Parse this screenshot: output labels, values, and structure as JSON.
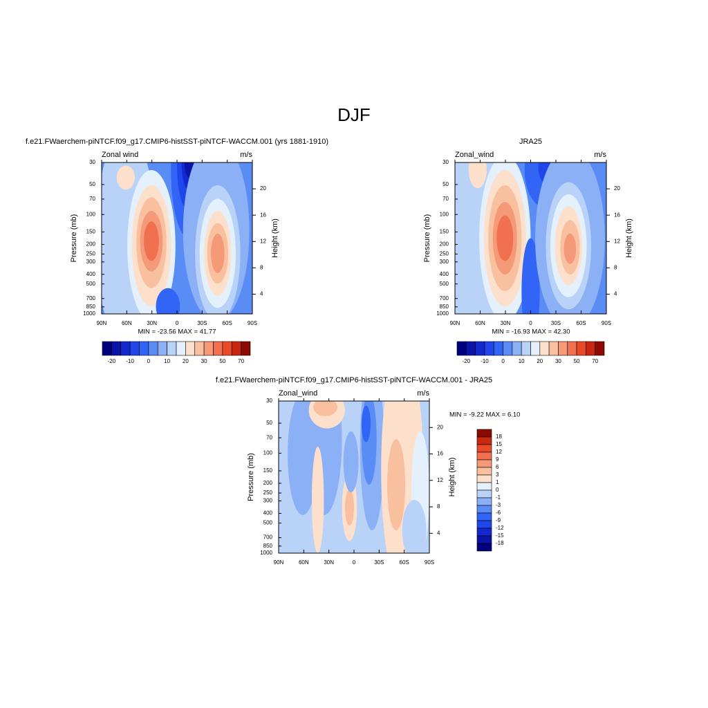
{
  "title": "DJF",
  "chart_data": [
    {
      "type": "contour",
      "title": "f.e21.FWaerchem-piNTCF.f09_g17.CMIP6-histSST-piNTCF-WACCM.001 (yrs 1881-1910)",
      "left_label": "Zonal wind",
      "right_label": "m/s",
      "ylabel": "Pressure (mb)",
      "y2label": "Height (km)",
      "stats": "MIN = -23.56  MAX =  41.77",
      "xlim": [
        90,
        -90
      ],
      "xticks": [
        {
          "value": 90,
          "label": "90N"
        },
        {
          "value": 60,
          "label": "60N"
        },
        {
          "value": 30,
          "label": "30N"
        },
        0,
        {
          "value": -30,
          "label": "30S"
        },
        {
          "value": -60,
          "label": "60S"
        },
        {
          "value": -90,
          "label": "90S"
        }
      ],
      "ylim": [
        1000,
        30
      ],
      "yscale": "log",
      "yticks": [
        30,
        50,
        70,
        100,
        150,
        200,
        250,
        300,
        400,
        500,
        700,
        850,
        1000
      ],
      "y2lim": [
        1,
        24
      ],
      "y2ticks": [
        4,
        8,
        12,
        16,
        20
      ],
      "colorbar": {
        "orientation": "horizontal",
        "colors": [
          "#00007f",
          "#0a14a8",
          "#1428d0",
          "#1e46eb",
          "#3264f5",
          "#5a8cf5",
          "#8cb0f5",
          "#b8d2f8",
          "#e4f0fc",
          "#fde0cc",
          "#f9c0a0",
          "#f49a78",
          "#f07050",
          "#ea4a28",
          "#c82810",
          "#8c0a00"
        ],
        "labels": [
          -20,
          -10,
          0,
          10,
          20,
          30,
          50,
          70
        ]
      }
    },
    {
      "type": "contour",
      "title": "JRA25",
      "left_label": "Zonal_wind",
      "right_label": "m/s",
      "ylabel": "Pressure (mb)",
      "y2label": "Height (km)",
      "stats": "MIN = -16.93  MAX =  42.30",
      "xlim": [
        90,
        -90
      ],
      "xticks": [
        {
          "value": 90,
          "label": "90N"
        },
        {
          "value": 60,
          "label": "60N"
        },
        {
          "value": 30,
          "label": "30N"
        },
        0,
        {
          "value": -30,
          "label": "30S"
        },
        {
          "value": -60,
          "label": "60S"
        },
        {
          "value": -90,
          "label": "90S"
        }
      ],
      "ylim": [
        1000,
        30
      ],
      "yscale": "log",
      "yticks": [
        30,
        50,
        70,
        100,
        150,
        200,
        250,
        300,
        400,
        500,
        700,
        850,
        1000
      ],
      "y2lim": [
        1,
        24
      ],
      "y2ticks": [
        4,
        8,
        12,
        16,
        20
      ],
      "colorbar": {
        "orientation": "horizontal",
        "colors": [
          "#00007f",
          "#0a14a8",
          "#1428d0",
          "#1e46eb",
          "#3264f5",
          "#5a8cf5",
          "#8cb0f5",
          "#b8d2f8",
          "#e4f0fc",
          "#fde0cc",
          "#f9c0a0",
          "#f49a78",
          "#f07050",
          "#ea4a28",
          "#c82810",
          "#8c0a00"
        ],
        "labels": [
          -20,
          -10,
          0,
          10,
          20,
          30,
          50,
          70
        ]
      }
    },
    {
      "type": "contour",
      "title": "f.e21.FWaerchem-piNTCF.f09_g17.CMIP6-histSST-piNTCF-WACCM.001 - JRA25",
      "left_label": "Zonal_wind",
      "right_label": "m/s",
      "ylabel": "Pressure (mb)",
      "y2label": "Height (km)",
      "stats": "MIN =  -9.22  MAX =   6.10",
      "xlim": [
        90,
        -90
      ],
      "xticks": [
        {
          "value": 90,
          "label": "90N"
        },
        {
          "value": 60,
          "label": "60N"
        },
        {
          "value": 30,
          "label": "30N"
        },
        0,
        {
          "value": -30,
          "label": "30S"
        },
        {
          "value": -60,
          "label": "60S"
        },
        {
          "value": -90,
          "label": "90S"
        }
      ],
      "ylim": [
        1000,
        30
      ],
      "yscale": "log",
      "yticks": [
        30,
        50,
        70,
        100,
        150,
        200,
        250,
        300,
        400,
        500,
        700,
        850,
        1000
      ],
      "y2lim": [
        1,
        24
      ],
      "y2ticks": [
        4,
        8,
        12,
        16,
        20
      ],
      "colorbar": {
        "orientation": "vertical",
        "colors": [
          "#00007f",
          "#0a14a8",
          "#1428d0",
          "#1e46eb",
          "#3264f5",
          "#5a8cf5",
          "#8cb0f5",
          "#b8d2f8",
          "#e4f0fc",
          "#fde0cc",
          "#f9c0a0",
          "#f49a78",
          "#f07050",
          "#ea4a28",
          "#c82810",
          "#8c0a00"
        ],
        "labels": [
          18,
          15,
          12,
          9,
          6,
          3,
          1,
          0,
          -1,
          -3,
          -6,
          -9,
          -12,
          -15,
          -18
        ]
      }
    }
  ]
}
